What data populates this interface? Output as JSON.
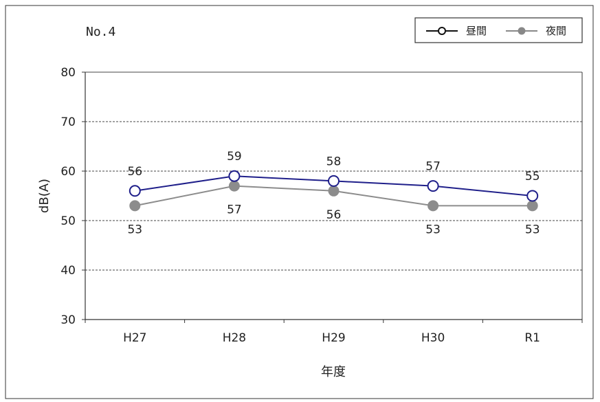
{
  "chart_data": {
    "type": "line",
    "title": "No.4",
    "xlabel": "年度",
    "ylabel": "dB(A)",
    "categories": [
      "H27",
      "H28",
      "H29",
      "H30",
      "R1"
    ],
    "ylim": [
      30,
      80
    ],
    "yticks": [
      "30",
      "40",
      "50",
      "60",
      "70",
      "80"
    ],
    "grid": "horizontal dashed",
    "legend_position": "top-right",
    "series": [
      {
        "name": "昼間",
        "values": [
          56,
          59,
          58,
          57,
          55
        ],
        "labels": [
          "56",
          "59",
          "58",
          "57",
          "55"
        ],
        "color": "#1f1f8a",
        "marker": "open-circle"
      },
      {
        "name": "夜間",
        "values": [
          53,
          57,
          56,
          53,
          53
        ],
        "labels": [
          "53",
          "57",
          "56",
          "53",
          "53"
        ],
        "color": "#8c8c8c",
        "marker": "filled-circle"
      }
    ]
  }
}
